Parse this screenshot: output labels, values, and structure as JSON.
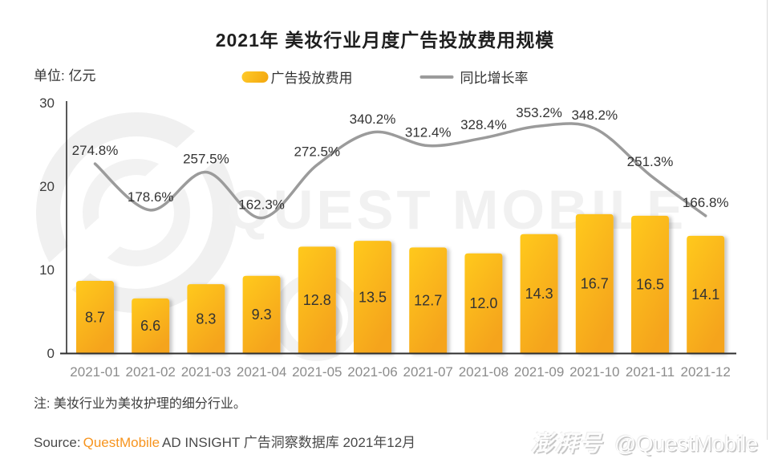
{
  "page": {
    "title": "2021年 美妆行业月度广告投放费用规模",
    "unit_label": "单位: 亿元",
    "note": "注: 美妆行业为美妆护理的细分行业。",
    "source": {
      "prefix": "Source:",
      "brand": "QuestMobile",
      "rest": "AD INSIGHT 广告洞察数据库 2021年12月"
    },
    "footer_watermark": {
      "logo_text": "澎湃号",
      "handle": "@QuestMobile"
    },
    "background_watermark": "QUEST MOBILE"
  },
  "legend": {
    "bar_label": "广告投放费用",
    "line_label": "同比增长率"
  },
  "colors": {
    "bar_gradient_top": "#FFC91E",
    "bar_gradient_bottom": "#F5A41F",
    "line": "#9B9B9B",
    "accent_orange": "#F7941E",
    "axis": "#2E2E2E",
    "x_tick_label": "#8C8C8C",
    "y_tick_label": "#3D3D3D",
    "value_label": "#333333",
    "watermark": "#F1F1F1"
  },
  "chart_data": {
    "type": "bar",
    "title": "2021年 美妆行业月度广告投放费用规模",
    "unit": "亿元",
    "categories": [
      "2021-01",
      "2021-02",
      "2021-03",
      "2021-04",
      "2021-05",
      "2021-06",
      "2021-07",
      "2021-08",
      "2021-09",
      "2021-10",
      "2021-11",
      "2021-12"
    ],
    "series": [
      {
        "name": "广告投放费用",
        "kind": "bar",
        "unit": "亿元",
        "values": [
          8.7,
          6.6,
          8.3,
          9.3,
          12.8,
          13.5,
          12.7,
          12.0,
          14.3,
          16.7,
          16.5,
          14.1
        ]
      },
      {
        "name": "同比增长率",
        "kind": "line",
        "unit": "%",
        "values": [
          274.8,
          178.6,
          257.5,
          162.3,
          272.5,
          340.2,
          312.4,
          328.4,
          353.2,
          348.2,
          251.3,
          166.8
        ]
      }
    ],
    "y_axis": {
      "ticks": [
        0,
        10,
        20,
        30
      ],
      "min": 0,
      "max": 30
    },
    "grid": false,
    "legend_position": "top"
  }
}
